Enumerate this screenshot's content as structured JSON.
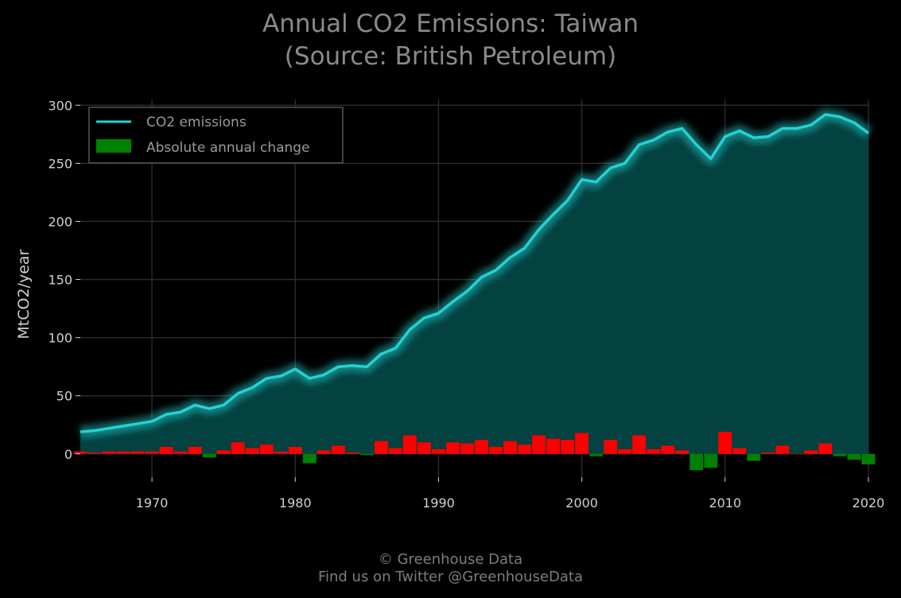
{
  "title_line1": "Annual CO2 Emissions: Taiwan",
  "title_line2": "(Source: British Petroleum)",
  "footer_line1": "© Greenhouse Data",
  "footer_line2": "Find us on Twitter @GreenhouseData",
  "colors": {
    "background": "#000000",
    "line": "#22d3d3",
    "area": "#044545",
    "positive_change": "#ff0000",
    "negative_change": "#008000",
    "grid": "#2e2e2e",
    "text": "#d0d0d0"
  },
  "chart_data": {
    "type": "line",
    "title": "Annual CO2 Emissions: Taiwan (Source: British Petroleum)",
    "xlabel": "",
    "ylabel": "MtCO2/year",
    "xlim": [
      1965,
      2020
    ],
    "ylim": [
      -20,
      305
    ],
    "x_ticks": [
      1970,
      1980,
      1990,
      2000,
      2010,
      2020
    ],
    "y_ticks": [
      0,
      50,
      100,
      150,
      200,
      250,
      300
    ],
    "grid": true,
    "legend_position": "top-left",
    "x": [
      1965,
      1966,
      1967,
      1968,
      1969,
      1970,
      1971,
      1972,
      1973,
      1974,
      1975,
      1976,
      1977,
      1978,
      1979,
      1980,
      1981,
      1982,
      1983,
      1984,
      1985,
      1986,
      1987,
      1988,
      1989,
      1990,
      1991,
      1992,
      1993,
      1994,
      1995,
      1996,
      1997,
      1998,
      1999,
      2000,
      2001,
      2002,
      2003,
      2004,
      2005,
      2006,
      2007,
      2008,
      2009,
      2010,
      2011,
      2012,
      2013,
      2014,
      2015,
      2016,
      2017,
      2018,
      2019,
      2020
    ],
    "series": [
      {
        "name": "CO2 emissions",
        "type": "line",
        "values": [
          19,
          20,
          22,
          24,
          26,
          28,
          34,
          36,
          42,
          39,
          42,
          52,
          57,
          65,
          67,
          73,
          65,
          68,
          75,
          76,
          75,
          86,
          91,
          107,
          117,
          121,
          131,
          140,
          152,
          158,
          169,
          177,
          193,
          206,
          218,
          236,
          234,
          246,
          250,
          266,
          270,
          277,
          280,
          266,
          254,
          273,
          278,
          272,
          273,
          280,
          280,
          283,
          292,
          290,
          285,
          276
        ]
      },
      {
        "name": "Absolute annual change",
        "type": "bar",
        "values": [
          2,
          1,
          2,
          2,
          2,
          2,
          6,
          2,
          6,
          -3,
          3,
          10,
          5,
          8,
          2,
          6,
          -8,
          3,
          7,
          1,
          -1,
          11,
          5,
          16,
          10,
          4,
          10,
          9,
          12,
          6,
          11,
          8,
          16,
          13,
          12,
          18,
          -2,
          12,
          4,
          16,
          4,
          7,
          3,
          -14,
          -12,
          19,
          5,
          -6,
          1,
          7,
          0,
          3,
          9,
          -2,
          -5,
          -9
        ]
      }
    ]
  }
}
